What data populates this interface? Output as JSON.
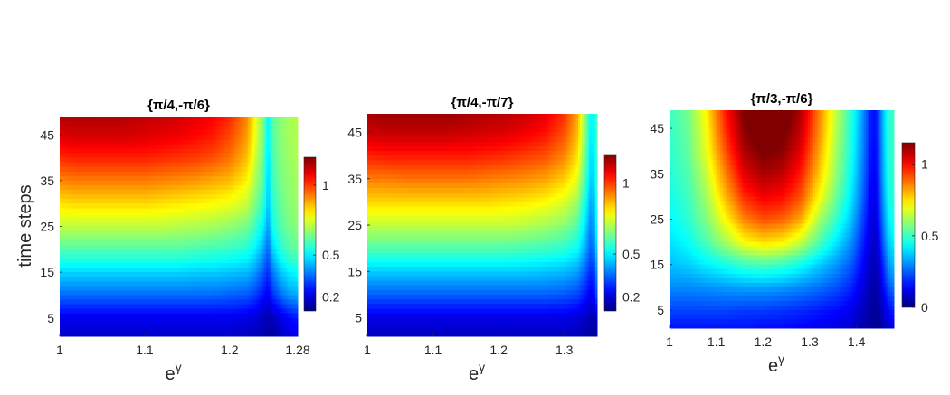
{
  "figure": {
    "shared_ylabel": "time steps"
  },
  "chart_data": [
    {
      "type": "heatmap",
      "title": "{π/4,-π/6}",
      "xlabel": "e^γ",
      "ylabel": "time steps",
      "xlim": [
        1,
        1.28
      ],
      "ylim": [
        1,
        49
      ],
      "xticks": [
        1,
        1.1,
        1.2,
        1.28
      ],
      "xticklabels": [
        "1",
        "1.1",
        "1.2",
        "1.28"
      ],
      "yticks": [
        5,
        15,
        25,
        35,
        45
      ],
      "yticklabels": [
        "5",
        "15",
        "25",
        "35",
        "45"
      ],
      "colormap": "jet",
      "clim": [
        0.1,
        1.2
      ],
      "colorbar": {
        "ticks": [
          0.2,
          0.5,
          1
        ],
        "ticklabels": [
          "0.2",
          "0.5",
          "1"
        ]
      },
      "x": [
        1.0,
        1.02,
        1.04,
        1.06,
        1.08,
        1.1,
        1.12,
        1.14,
        1.16,
        1.18,
        1.2,
        1.22,
        1.23,
        1.24,
        1.245,
        1.25,
        1.26,
        1.27,
        1.28
      ],
      "y": [
        1,
        5,
        10,
        15,
        20,
        25,
        30,
        35,
        40,
        45,
        49
      ],
      "z": [
        [
          0.18,
          0.18,
          0.18,
          0.18,
          0.18,
          0.18,
          0.18,
          0.18,
          0.18,
          0.18,
          0.18,
          0.17,
          0.16,
          0.15,
          0.14,
          0.13,
          0.17,
          0.2,
          0.22
        ],
        [
          0.22,
          0.22,
          0.22,
          0.22,
          0.22,
          0.22,
          0.22,
          0.22,
          0.22,
          0.22,
          0.22,
          0.21,
          0.2,
          0.17,
          0.15,
          0.16,
          0.2,
          0.24,
          0.26
        ],
        [
          0.35,
          0.35,
          0.35,
          0.35,
          0.35,
          0.35,
          0.35,
          0.35,
          0.35,
          0.35,
          0.34,
          0.33,
          0.3,
          0.25,
          0.22,
          0.28,
          0.35,
          0.4,
          0.42
        ],
        [
          0.47,
          0.47,
          0.47,
          0.47,
          0.47,
          0.47,
          0.47,
          0.47,
          0.46,
          0.46,
          0.45,
          0.44,
          0.4,
          0.33,
          0.28,
          0.36,
          0.45,
          0.5,
          0.52
        ],
        [
          0.6,
          0.6,
          0.6,
          0.6,
          0.6,
          0.6,
          0.6,
          0.6,
          0.59,
          0.58,
          0.57,
          0.55,
          0.5,
          0.42,
          0.34,
          0.46,
          0.55,
          0.6,
          0.62
        ],
        [
          0.72,
          0.72,
          0.72,
          0.72,
          0.72,
          0.72,
          0.72,
          0.71,
          0.7,
          0.69,
          0.67,
          0.64,
          0.58,
          0.5,
          0.4,
          0.52,
          0.6,
          0.64,
          0.66
        ],
        [
          0.82,
          0.83,
          0.83,
          0.83,
          0.83,
          0.83,
          0.82,
          0.81,
          0.8,
          0.79,
          0.77,
          0.73,
          0.65,
          0.56,
          0.44,
          0.55,
          0.62,
          0.66,
          0.68
        ],
        [
          0.92,
          0.93,
          0.93,
          0.93,
          0.93,
          0.93,
          0.92,
          0.91,
          0.9,
          0.88,
          0.86,
          0.8,
          0.7,
          0.6,
          0.46,
          0.57,
          0.64,
          0.67,
          0.69
        ],
        [
          1.02,
          1.03,
          1.03,
          1.03,
          1.03,
          1.03,
          1.02,
          1.01,
          1.0,
          0.98,
          0.94,
          0.86,
          0.74,
          0.62,
          0.48,
          0.58,
          0.65,
          0.68,
          0.7
        ],
        [
          1.1,
          1.11,
          1.11,
          1.11,
          1.11,
          1.1,
          1.09,
          1.08,
          1.06,
          1.04,
          0.99,
          0.9,
          0.77,
          0.64,
          0.5,
          0.6,
          0.66,
          0.69,
          0.7
        ],
        [
          1.14,
          1.15,
          1.15,
          1.15,
          1.14,
          1.13,
          1.12,
          1.11,
          1.09,
          1.07,
          1.02,
          0.92,
          0.78,
          0.65,
          0.5,
          0.6,
          0.66,
          0.69,
          0.71
        ]
      ]
    },
    {
      "type": "heatmap",
      "title": "{π/4,-π/7}",
      "xlabel": "e^γ",
      "ylabel": "",
      "xlim": [
        1,
        1.35
      ],
      "ylim": [
        1,
        49
      ],
      "xticks": [
        1,
        1.1,
        1.2,
        1.3
      ],
      "xticklabels": [
        "1",
        "1.1",
        "1.2",
        "1.3"
      ],
      "yticks": [
        5,
        15,
        25,
        35,
        45
      ],
      "yticklabels": [
        "5",
        "15",
        "25",
        "35",
        "45"
      ],
      "colormap": "jet",
      "clim": [
        0.1,
        1.2
      ],
      "colorbar": {
        "ticks": [
          0.2,
          0.5,
          1
        ],
        "ticklabels": [
          "0.2",
          "0.5",
          "1"
        ]
      },
      "x": [
        1.0,
        1.03,
        1.06,
        1.09,
        1.12,
        1.15,
        1.18,
        1.21,
        1.24,
        1.27,
        1.3,
        1.32,
        1.33,
        1.34,
        1.345,
        1.35
      ],
      "y": [
        1,
        5,
        10,
        15,
        20,
        25,
        30,
        35,
        40,
        45,
        49
      ],
      "z": [
        [
          0.17,
          0.17,
          0.17,
          0.17,
          0.17,
          0.17,
          0.17,
          0.17,
          0.17,
          0.17,
          0.17,
          0.16,
          0.15,
          0.14,
          0.13,
          0.16
        ],
        [
          0.21,
          0.21,
          0.21,
          0.21,
          0.21,
          0.21,
          0.21,
          0.21,
          0.21,
          0.21,
          0.21,
          0.2,
          0.18,
          0.16,
          0.15,
          0.2
        ],
        [
          0.34,
          0.34,
          0.34,
          0.34,
          0.34,
          0.34,
          0.34,
          0.34,
          0.34,
          0.34,
          0.33,
          0.31,
          0.27,
          0.22,
          0.25,
          0.34
        ],
        [
          0.46,
          0.46,
          0.46,
          0.46,
          0.46,
          0.46,
          0.46,
          0.46,
          0.46,
          0.45,
          0.44,
          0.41,
          0.35,
          0.28,
          0.3,
          0.42
        ],
        [
          0.6,
          0.6,
          0.6,
          0.6,
          0.6,
          0.6,
          0.6,
          0.6,
          0.59,
          0.58,
          0.56,
          0.52,
          0.44,
          0.34,
          0.38,
          0.5
        ],
        [
          0.72,
          0.72,
          0.72,
          0.72,
          0.72,
          0.72,
          0.72,
          0.72,
          0.71,
          0.69,
          0.66,
          0.6,
          0.5,
          0.38,
          0.42,
          0.55
        ],
        [
          0.83,
          0.83,
          0.83,
          0.83,
          0.83,
          0.83,
          0.83,
          0.82,
          0.81,
          0.79,
          0.75,
          0.68,
          0.56,
          0.42,
          0.45,
          0.58
        ],
        [
          0.93,
          0.93,
          0.94,
          0.94,
          0.94,
          0.94,
          0.93,
          0.92,
          0.91,
          0.89,
          0.84,
          0.76,
          0.62,
          0.46,
          0.48,
          0.6
        ],
        [
          1.03,
          1.04,
          1.04,
          1.04,
          1.04,
          1.04,
          1.03,
          1.02,
          1.0,
          0.98,
          0.92,
          0.82,
          0.66,
          0.48,
          0.5,
          0.61
        ],
        [
          1.12,
          1.13,
          1.13,
          1.13,
          1.13,
          1.12,
          1.11,
          1.1,
          1.08,
          1.05,
          0.98,
          0.86,
          0.69,
          0.5,
          0.52,
          0.62
        ],
        [
          1.16,
          1.17,
          1.17,
          1.17,
          1.17,
          1.16,
          1.15,
          1.14,
          1.12,
          1.09,
          1.01,
          0.88,
          0.7,
          0.51,
          0.52,
          0.62
        ]
      ]
    },
    {
      "type": "heatmap",
      "title": "{π/3,-π/6}",
      "xlabel": "e^γ",
      "ylabel": "",
      "xlim": [
        1,
        1.48
      ],
      "ylim": [
        1,
        49
      ],
      "xticks": [
        1,
        1.1,
        1.2,
        1.3,
        1.4
      ],
      "xticklabels": [
        "1",
        "1.1",
        "1.2",
        "1.3",
        "1.4"
      ],
      "yticks": [
        5,
        15,
        25,
        35,
        45
      ],
      "yticklabels": [
        "5",
        "15",
        "25",
        "35",
        "45"
      ],
      "colormap": "jet",
      "clim": [
        0,
        1.15
      ],
      "colorbar": {
        "ticks": [
          0,
          0.5,
          1
        ],
        "ticklabels": [
          "0",
          "0.5",
          "1"
        ]
      },
      "x": [
        1.0,
        1.04,
        1.08,
        1.12,
        1.16,
        1.2,
        1.24,
        1.28,
        1.32,
        1.36,
        1.39,
        1.41,
        1.43,
        1.44,
        1.45,
        1.46,
        1.47,
        1.48
      ],
      "y": [
        1,
        5,
        10,
        15,
        20,
        25,
        30,
        35,
        40,
        45,
        49
      ],
      "z": [
        [
          0.16,
          0.16,
          0.16,
          0.16,
          0.16,
          0.15,
          0.15,
          0.14,
          0.13,
          0.11,
          0.09,
          0.06,
          0.03,
          0.02,
          0.03,
          0.06,
          0.1,
          0.12
        ],
        [
          0.22,
          0.22,
          0.22,
          0.22,
          0.21,
          0.21,
          0.2,
          0.19,
          0.17,
          0.15,
          0.12,
          0.08,
          0.04,
          0.03,
          0.05,
          0.1,
          0.15,
          0.18
        ],
        [
          0.3,
          0.3,
          0.31,
          0.32,
          0.33,
          0.33,
          0.32,
          0.3,
          0.27,
          0.23,
          0.18,
          0.12,
          0.06,
          0.04,
          0.08,
          0.16,
          0.24,
          0.28
        ],
        [
          0.36,
          0.38,
          0.42,
          0.46,
          0.5,
          0.52,
          0.5,
          0.45,
          0.38,
          0.31,
          0.24,
          0.16,
          0.08,
          0.06,
          0.12,
          0.22,
          0.32,
          0.36
        ],
        [
          0.4,
          0.44,
          0.52,
          0.62,
          0.72,
          0.76,
          0.74,
          0.66,
          0.52,
          0.4,
          0.3,
          0.2,
          0.1,
          0.08,
          0.16,
          0.28,
          0.38,
          0.42
        ],
        [
          0.43,
          0.48,
          0.58,
          0.72,
          0.86,
          0.92,
          0.9,
          0.82,
          0.62,
          0.48,
          0.36,
          0.24,
          0.12,
          0.1,
          0.2,
          0.32,
          0.42,
          0.46
        ],
        [
          0.45,
          0.5,
          0.62,
          0.8,
          0.96,
          1.02,
          1.0,
          0.92,
          0.72,
          0.54,
          0.4,
          0.28,
          0.14,
          0.12,
          0.22,
          0.35,
          0.45,
          0.48
        ],
        [
          0.47,
          0.52,
          0.66,
          0.86,
          1.04,
          1.1,
          1.08,
          0.98,
          0.78,
          0.58,
          0.43,
          0.3,
          0.16,
          0.13,
          0.24,
          0.37,
          0.46,
          0.49
        ],
        [
          0.48,
          0.54,
          0.7,
          0.92,
          1.1,
          1.16,
          1.14,
          1.04,
          0.82,
          0.6,
          0.45,
          0.32,
          0.17,
          0.14,
          0.25,
          0.38,
          0.47,
          0.5
        ],
        [
          0.49,
          0.55,
          0.72,
          0.96,
          1.14,
          1.2,
          1.18,
          1.08,
          0.85,
          0.62,
          0.46,
          0.33,
          0.18,
          0.15,
          0.26,
          0.39,
          0.47,
          0.5
        ],
        [
          0.5,
          0.56,
          0.74,
          0.98,
          1.16,
          1.22,
          1.2,
          1.1,
          0.86,
          0.63,
          0.47,
          0.34,
          0.18,
          0.15,
          0.26,
          0.39,
          0.48,
          0.5
        ]
      ]
    }
  ]
}
